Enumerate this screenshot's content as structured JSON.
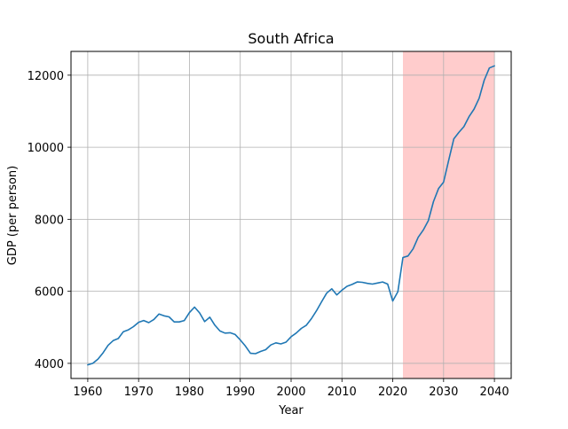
{
  "chart_data": {
    "type": "line",
    "title": "South Africa",
    "xlabel": "Year",
    "ylabel": "GDP (per person)",
    "xlim": [
      1956.7,
      2043.3
    ],
    "ylim": [
      3580,
      12660
    ],
    "x_ticks": [
      1960,
      1970,
      1980,
      1990,
      2000,
      2010,
      2020,
      2030,
      2040
    ],
    "x_tick_labels": [
      "1960",
      "1970",
      "1980",
      "1990",
      "2000",
      "2010",
      "2020",
      "2030",
      "2040"
    ],
    "y_ticks": [
      4000,
      6000,
      8000,
      10000,
      12000
    ],
    "y_tick_labels": [
      "4000",
      "6000",
      "8000",
      "10000",
      "12000"
    ],
    "grid": true,
    "highlight_span": {
      "x_start": 2022,
      "x_end": 2040,
      "color": "#ffcccc"
    },
    "series": [
      {
        "color": "#1f77b4",
        "x": [
          1960,
          1961,
          1962,
          1963,
          1964,
          1965,
          1966,
          1967,
          1968,
          1969,
          1970,
          1971,
          1972,
          1973,
          1974,
          1975,
          1976,
          1977,
          1978,
          1979,
          1980,
          1981,
          1982,
          1983,
          1984,
          1985,
          1986,
          1987,
          1988,
          1989,
          1990,
          1991,
          1992,
          1993,
          1994,
          1995,
          1996,
          1997,
          1998,
          1999,
          2000,
          2001,
          2002,
          2003,
          2004,
          2005,
          2006,
          2007,
          2008,
          2009,
          2010,
          2011,
          2012,
          2013,
          2014,
          2015,
          2016,
          2017,
          2018,
          2019,
          2020,
          2021,
          2022,
          2023,
          2024,
          2025,
          2026,
          2027,
          2028,
          2029,
          2030,
          2031,
          2032,
          2033,
          2034,
          2035,
          2036,
          2037,
          2038,
          2039,
          2040
        ],
        "y": [
          3960,
          4000,
          4120,
          4290,
          4500,
          4630,
          4690,
          4880,
          4930,
          5020,
          5140,
          5190,
          5130,
          5220,
          5370,
          5320,
          5290,
          5150,
          5150,
          5190,
          5410,
          5560,
          5400,
          5160,
          5280,
          5060,
          4900,
          4840,
          4850,
          4800,
          4650,
          4480,
          4280,
          4270,
          4330,
          4380,
          4510,
          4570,
          4540,
          4590,
          4740,
          4840,
          4970,
          5060,
          5240,
          5460,
          5710,
          5950,
          6070,
          5900,
          6030,
          6140,
          6190,
          6260,
          6250,
          6220,
          6200,
          6230,
          6260,
          6200,
          5730,
          5990,
          6940,
          6980,
          7180,
          7500,
          7700,
          7960,
          8490,
          8850,
          9030,
          9640,
          10230,
          10410,
          10570,
          10850,
          11060,
          11360,
          11860,
          12200,
          12260
        ]
      }
    ]
  }
}
